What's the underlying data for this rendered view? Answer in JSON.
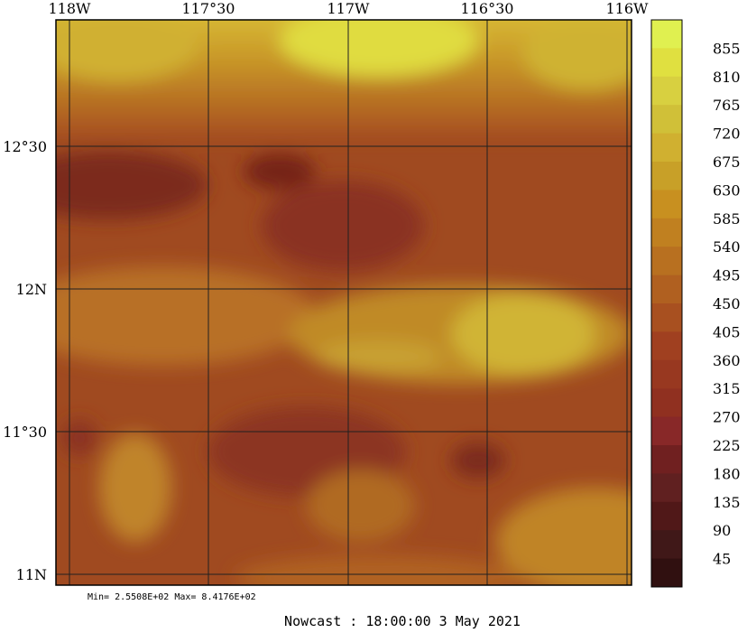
{
  "map": {
    "lon_labels": [
      "118W",
      "117°30",
      "117W",
      "116°30",
      "116W"
    ],
    "lat_labels": [
      "12°30",
      "12N",
      "11°30",
      "11N"
    ],
    "stats": "Min= 2.5508E+02  Max= 8.4176E+02",
    "footer": "Nowcast : 18:00:00    3 May 2021"
  },
  "colorbar": {
    "labels": [
      "855",
      "810",
      "765",
      "720",
      "675",
      "630",
      "585",
      "540",
      "495",
      "450",
      "405",
      "360",
      "315",
      "270",
      "225",
      "180",
      "135",
      "90",
      "45"
    ],
    "colors": [
      "#e0f050",
      "#e0e040",
      "#d8d040",
      "#d0c038",
      "#d0b030",
      "#c8a028",
      "#c89020",
      "#c08020",
      "#b87020",
      "#b06020",
      "#a85020",
      "#a04020",
      "#983820",
      "#903020",
      "#882828",
      "#702020",
      "#602020",
      "#501818",
      "#401818",
      "#301010"
    ]
  },
  "colors": {
    "low": "#7e2a1e",
    "mid": "#a55220",
    "mid2": "#b86a22",
    "high": "#d4a030",
    "peak": "#e4e040"
  }
}
